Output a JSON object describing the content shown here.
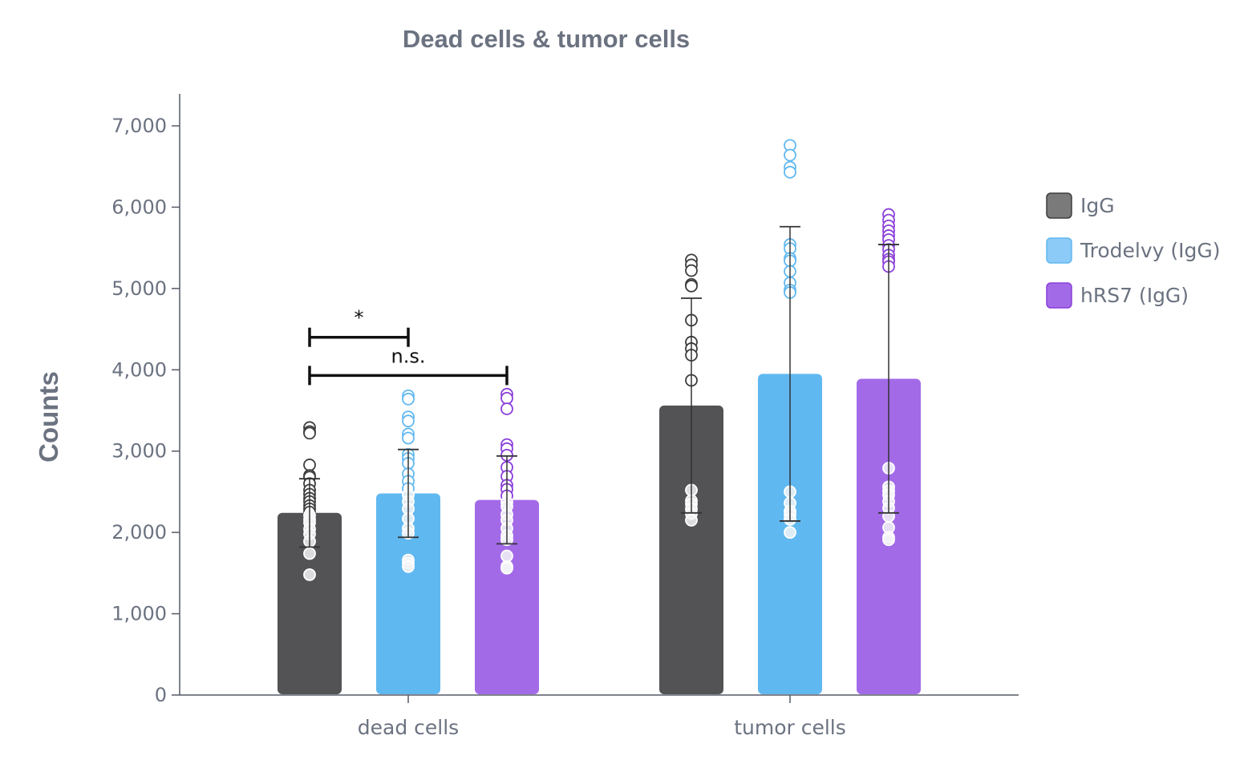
{
  "chart_data": {
    "type": "bar",
    "title": "Dead cells & tumor cells",
    "xlabel": "",
    "ylabel": "Counts",
    "ylim": [
      0,
      7400
    ],
    "yticks": [
      0,
      1000,
      2000,
      3000,
      4000,
      5000,
      6000,
      7000
    ],
    "ytick_labels": [
      "0",
      "1,000",
      "2,000",
      "3,000",
      "4,000",
      "5,000",
      "6,000",
      "7,000"
    ],
    "categories": [
      "dead cells",
      "tumor cells"
    ],
    "series": [
      {
        "name": "IgG",
        "color": "#535356",
        "legend_color": "#7a7a7a",
        "point_color": "#3d3d3d",
        "values": [
          2240,
          3560
        ],
        "sd": [
          420,
          1320
        ],
        "points": [
          [
            3290,
            3240,
            3220,
            2830,
            2700,
            2680,
            2600,
            2520,
            2470,
            2420,
            2380,
            2330,
            2290,
            2250,
            2210,
            2160,
            2120,
            2040,
            1980,
            1890,
            1740,
            1480
          ],
          [
            5350,
            5290,
            5220,
            5050,
            5030,
            4610,
            4340,
            4260,
            4180,
            3870,
            2520,
            2390,
            2350,
            2290,
            2230,
            2150
          ]
        ]
      },
      {
        "name": "Trodelvy (IgG)",
        "color": "#60b8f0",
        "legend_color": "#8ccaf7",
        "point_color": "#62b8f0",
        "values": [
          2480,
          3950
        ],
        "sd": [
          540,
          1810
        ],
        "points": [
          [
            3680,
            3640,
            3420,
            3370,
            3210,
            3160,
            2960,
            2910,
            2850,
            2720,
            2630,
            2540,
            2460,
            2380,
            2290,
            2170,
            2050,
            1990,
            1660,
            1620,
            1580
          ],
          [
            6760,
            6640,
            6490,
            6430,
            5540,
            5490,
            5370,
            5340,
            5210,
            5070,
            4980,
            4950,
            2500,
            2360,
            2260,
            2220,
            2160,
            2000
          ]
        ]
      },
      {
        "name": "hRS7 (IgG)",
        "color": "#a36ae8",
        "legend_color": "#a36ae8",
        "point_color": "#8a3fd9",
        "values": [
          2400,
          3890
        ],
        "sd": [
          540,
          1650
        ],
        "points": [
          [
            3700,
            3650,
            3520,
            3080,
            3030,
            2950,
            2800,
            2690,
            2580,
            2530,
            2450,
            2370,
            2320,
            2220,
            2150,
            2050,
            1960,
            1910,
            1710,
            1580,
            1560
          ],
          [
            5910,
            5840,
            5770,
            5710,
            5650,
            5600,
            5530,
            5480,
            5410,
            5360,
            5330,
            5270,
            2790,
            2560,
            2510,
            2460,
            2380,
            2300,
            2200,
            2060,
            1940,
            1910
          ]
        ]
      }
    ],
    "annotations": [
      {
        "label": "*",
        "category": "dead cells",
        "from_series": 0,
        "to_series": 1,
        "y": 4400
      },
      {
        "label": "n.s.",
        "category": "dead cells",
        "from_series": 0,
        "to_series": 2,
        "y": 3930
      }
    ],
    "legend": {
      "position": "right",
      "entries": [
        "IgG",
        "Trodelvy (IgG)",
        "hRS7 (IgG)"
      ]
    },
    "grid": false
  }
}
